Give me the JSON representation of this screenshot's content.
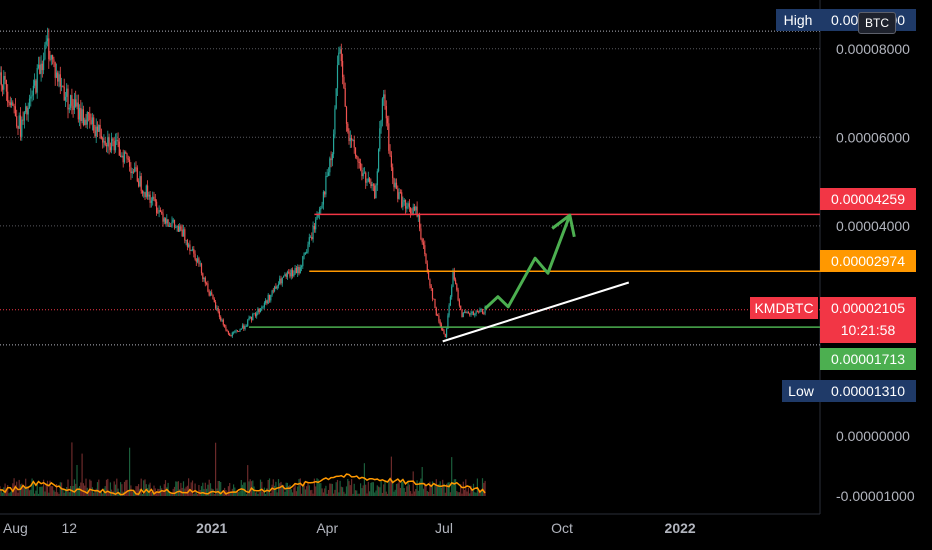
{
  "chart_data": {
    "type": "candlestick",
    "symbol": "KMDBTC",
    "currency_badge": "BTC",
    "x_tick_labels": [
      "Aug",
      "12",
      "2021",
      "Apr",
      "Jul",
      "Oct",
      "2022"
    ],
    "y_tick_labels": [
      "0.00008000",
      "0.00006000",
      "0.00004000",
      "0.00000000",
      "-0.00001000"
    ],
    "y_ticks": [
      8e-05,
      6e-05,
      4e-05
    ],
    "volume_ticks": [
      0.0,
      -1e-05
    ],
    "ylim": [
      1.15e-05,
      8.65e-05
    ],
    "x_range": [
      "2020-07-20",
      "2022-04-20"
    ],
    "high": {
      "label": "High",
      "value": "0.00008400",
      "color": "#1f3a68"
    },
    "low": {
      "label": "Low",
      "value": "0.00001310",
      "color": "#1f3a68"
    },
    "last_price": {
      "label": "KMDBTC",
      "value": "0.00002105",
      "countdown": "10:21:58",
      "color": "#f23645"
    },
    "levels": [
      {
        "value": "0.00004259",
        "color": "#f23645"
      },
      {
        "value": "0.00002974",
        "color": "#ff9800"
      },
      {
        "value": "0.00001713",
        "color": "#4caf50"
      }
    ],
    "colors": {
      "up": "#26a69a",
      "down": "#ef5350",
      "volume_ma": "#ff9800",
      "projection": "#4caf50",
      "trendline": "#ffffff"
    },
    "grid": false,
    "price_series": [
      {
        "date": "2020-07-20",
        "close": 7.4e-05
      },
      {
        "date": "2020-07-28",
        "close": 6.9e-05
      },
      {
        "date": "2020-08-05",
        "close": 6.2e-05
      },
      {
        "date": "2020-08-12",
        "close": 6.7e-05
      },
      {
        "date": "2020-08-20",
        "close": 7.6e-05
      },
      {
        "date": "2020-08-26",
        "close": 8.1e-05
      },
      {
        "date": "2020-09-02",
        "close": 7.4e-05
      },
      {
        "date": "2020-09-12",
        "close": 6.8e-05
      },
      {
        "date": "2020-09-25",
        "close": 6.4e-05
      },
      {
        "date": "2020-10-10",
        "close": 6e-05
      },
      {
        "date": "2020-10-25",
        "close": 5.6e-05
      },
      {
        "date": "2020-11-10",
        "close": 4.8e-05
      },
      {
        "date": "2020-11-25",
        "close": 4.2e-05
      },
      {
        "date": "2020-12-10",
        "close": 3.8e-05
      },
      {
        "date": "2020-12-20",
        "close": 3.3e-05
      },
      {
        "date": "2020-12-30",
        "close": 2.5e-05
      },
      {
        "date": "2021-01-08",
        "close": 1.9e-05
      },
      {
        "date": "2021-01-15",
        "close": 1.5e-05
      },
      {
        "date": "2021-01-25",
        "close": 1.7e-05
      },
      {
        "date": "2021-02-10",
        "close": 2.2e-05
      },
      {
        "date": "2021-02-25",
        "close": 2.8e-05
      },
      {
        "date": "2021-03-10",
        "close": 3e-05
      },
      {
        "date": "2021-03-20",
        "close": 3.8e-05
      },
      {
        "date": "2021-03-28",
        "close": 4.6e-05
      },
      {
        "date": "2021-04-05",
        "close": 5.6e-05
      },
      {
        "date": "2021-04-10",
        "close": 8e-05
      },
      {
        "date": "2021-04-18",
        "close": 6e-05
      },
      {
        "date": "2021-04-28",
        "close": 5.2e-05
      },
      {
        "date": "2021-05-08",
        "close": 4.7e-05
      },
      {
        "date": "2021-05-15",
        "close": 7e-05
      },
      {
        "date": "2021-05-22",
        "close": 5e-05
      },
      {
        "date": "2021-06-01",
        "close": 4.4e-05
      },
      {
        "date": "2021-06-10",
        "close": 4.3e-05
      },
      {
        "date": "2021-06-18",
        "close": 3e-05
      },
      {
        "date": "2021-06-25",
        "close": 2e-05
      },
      {
        "date": "2021-07-02",
        "close": 1.5e-05
      },
      {
        "date": "2021-07-08",
        "close": 2.9e-05
      },
      {
        "date": "2021-07-15",
        "close": 2e-05
      },
      {
        "date": "2021-07-25",
        "close": 2e-05
      },
      {
        "date": "2021-08-02",
        "close": 2.1e-05
      }
    ],
    "volume_ma_series": [
      {
        "date": "2020-07-20",
        "value": -9.2e-06
      },
      {
        "date": "2020-08-05",
        "value": -8.6e-06
      },
      {
        "date": "2020-08-20",
        "value": -7.6e-06
      },
      {
        "date": "2020-09-10",
        "value": -8.9e-06
      },
      {
        "date": "2020-10-15",
        "value": -9.4e-06
      },
      {
        "date": "2020-12-01",
        "value": -9.2e-06
      },
      {
        "date": "2021-01-10",
        "value": -9.4e-06
      },
      {
        "date": "2021-02-15",
        "value": -8.9e-06
      },
      {
        "date": "2021-03-15",
        "value": -8e-06
      },
      {
        "date": "2021-04-08",
        "value": -6.6e-06
      },
      {
        "date": "2021-05-10",
        "value": -7.2e-06
      },
      {
        "date": "2021-06-15",
        "value": -8e-06
      },
      {
        "date": "2021-07-15",
        "value": -8.2e-06
      },
      {
        "date": "2021-08-02",
        "value": -9.2e-06
      }
    ],
    "trendline": [
      {
        "date": "2021-06-30",
        "value": 1.39e-05
      },
      {
        "date": "2021-11-22",
        "value": 2.72e-05
      }
    ],
    "projection_path": [
      {
        "date": "2021-08-02",
        "value": 2.13e-05
      },
      {
        "date": "2021-08-12",
        "value": 2.4e-05
      },
      {
        "date": "2021-08-20",
        "value": 2.17e-05
      },
      {
        "date": "2021-09-10",
        "value": 3.27e-05
      },
      {
        "date": "2021-09-20",
        "value": 2.93e-05
      },
      {
        "date": "2021-10-07",
        "value": 4.24e-05
      }
    ],
    "level_segments": [
      {
        "level": 0,
        "start": "2021-03-22"
      },
      {
        "level": 1,
        "start": "2021-03-18"
      },
      {
        "level": 2,
        "start": "2021-01-30"
      }
    ]
  }
}
